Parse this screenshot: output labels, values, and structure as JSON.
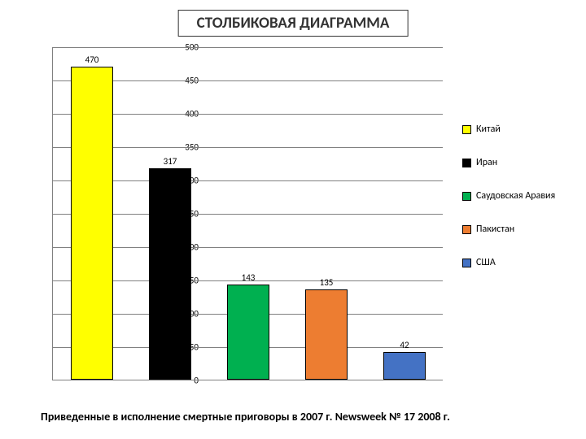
{
  "title": "СТОЛБИКОВАЯ ДИАГРАММА",
  "title_fontsize": 19,
  "title_color": "#333333",
  "caption": "Приведенные в исполнение смертные приговоры в 2007 г. Newsweek № 17 2008 г.",
  "chart": {
    "type": "bar",
    "ylim": [
      0,
      500
    ],
    "ytick_step": 50,
    "yticks": [
      0,
      50,
      100,
      150,
      200,
      250,
      300,
      350,
      400,
      450,
      500
    ],
    "grid_color": "#808080",
    "axis_color": "#808080",
    "background_color": "#ffffff",
    "bar_border_color": "#000000",
    "bar_width_rel": 0.55,
    "label_fontsize": 11,
    "series": [
      {
        "name": "Китай",
        "value": 470,
        "color": "#ffff00"
      },
      {
        "name": "Иран",
        "value": 317,
        "color": "#000000"
      },
      {
        "name": "Саудовская Аравия",
        "value": 143,
        "color": "#00b050"
      },
      {
        "name": "Пакистан",
        "value": 135,
        "color": "#ed7d31"
      },
      {
        "name": "США",
        "value": 42,
        "color": "#4472c4"
      }
    ]
  }
}
